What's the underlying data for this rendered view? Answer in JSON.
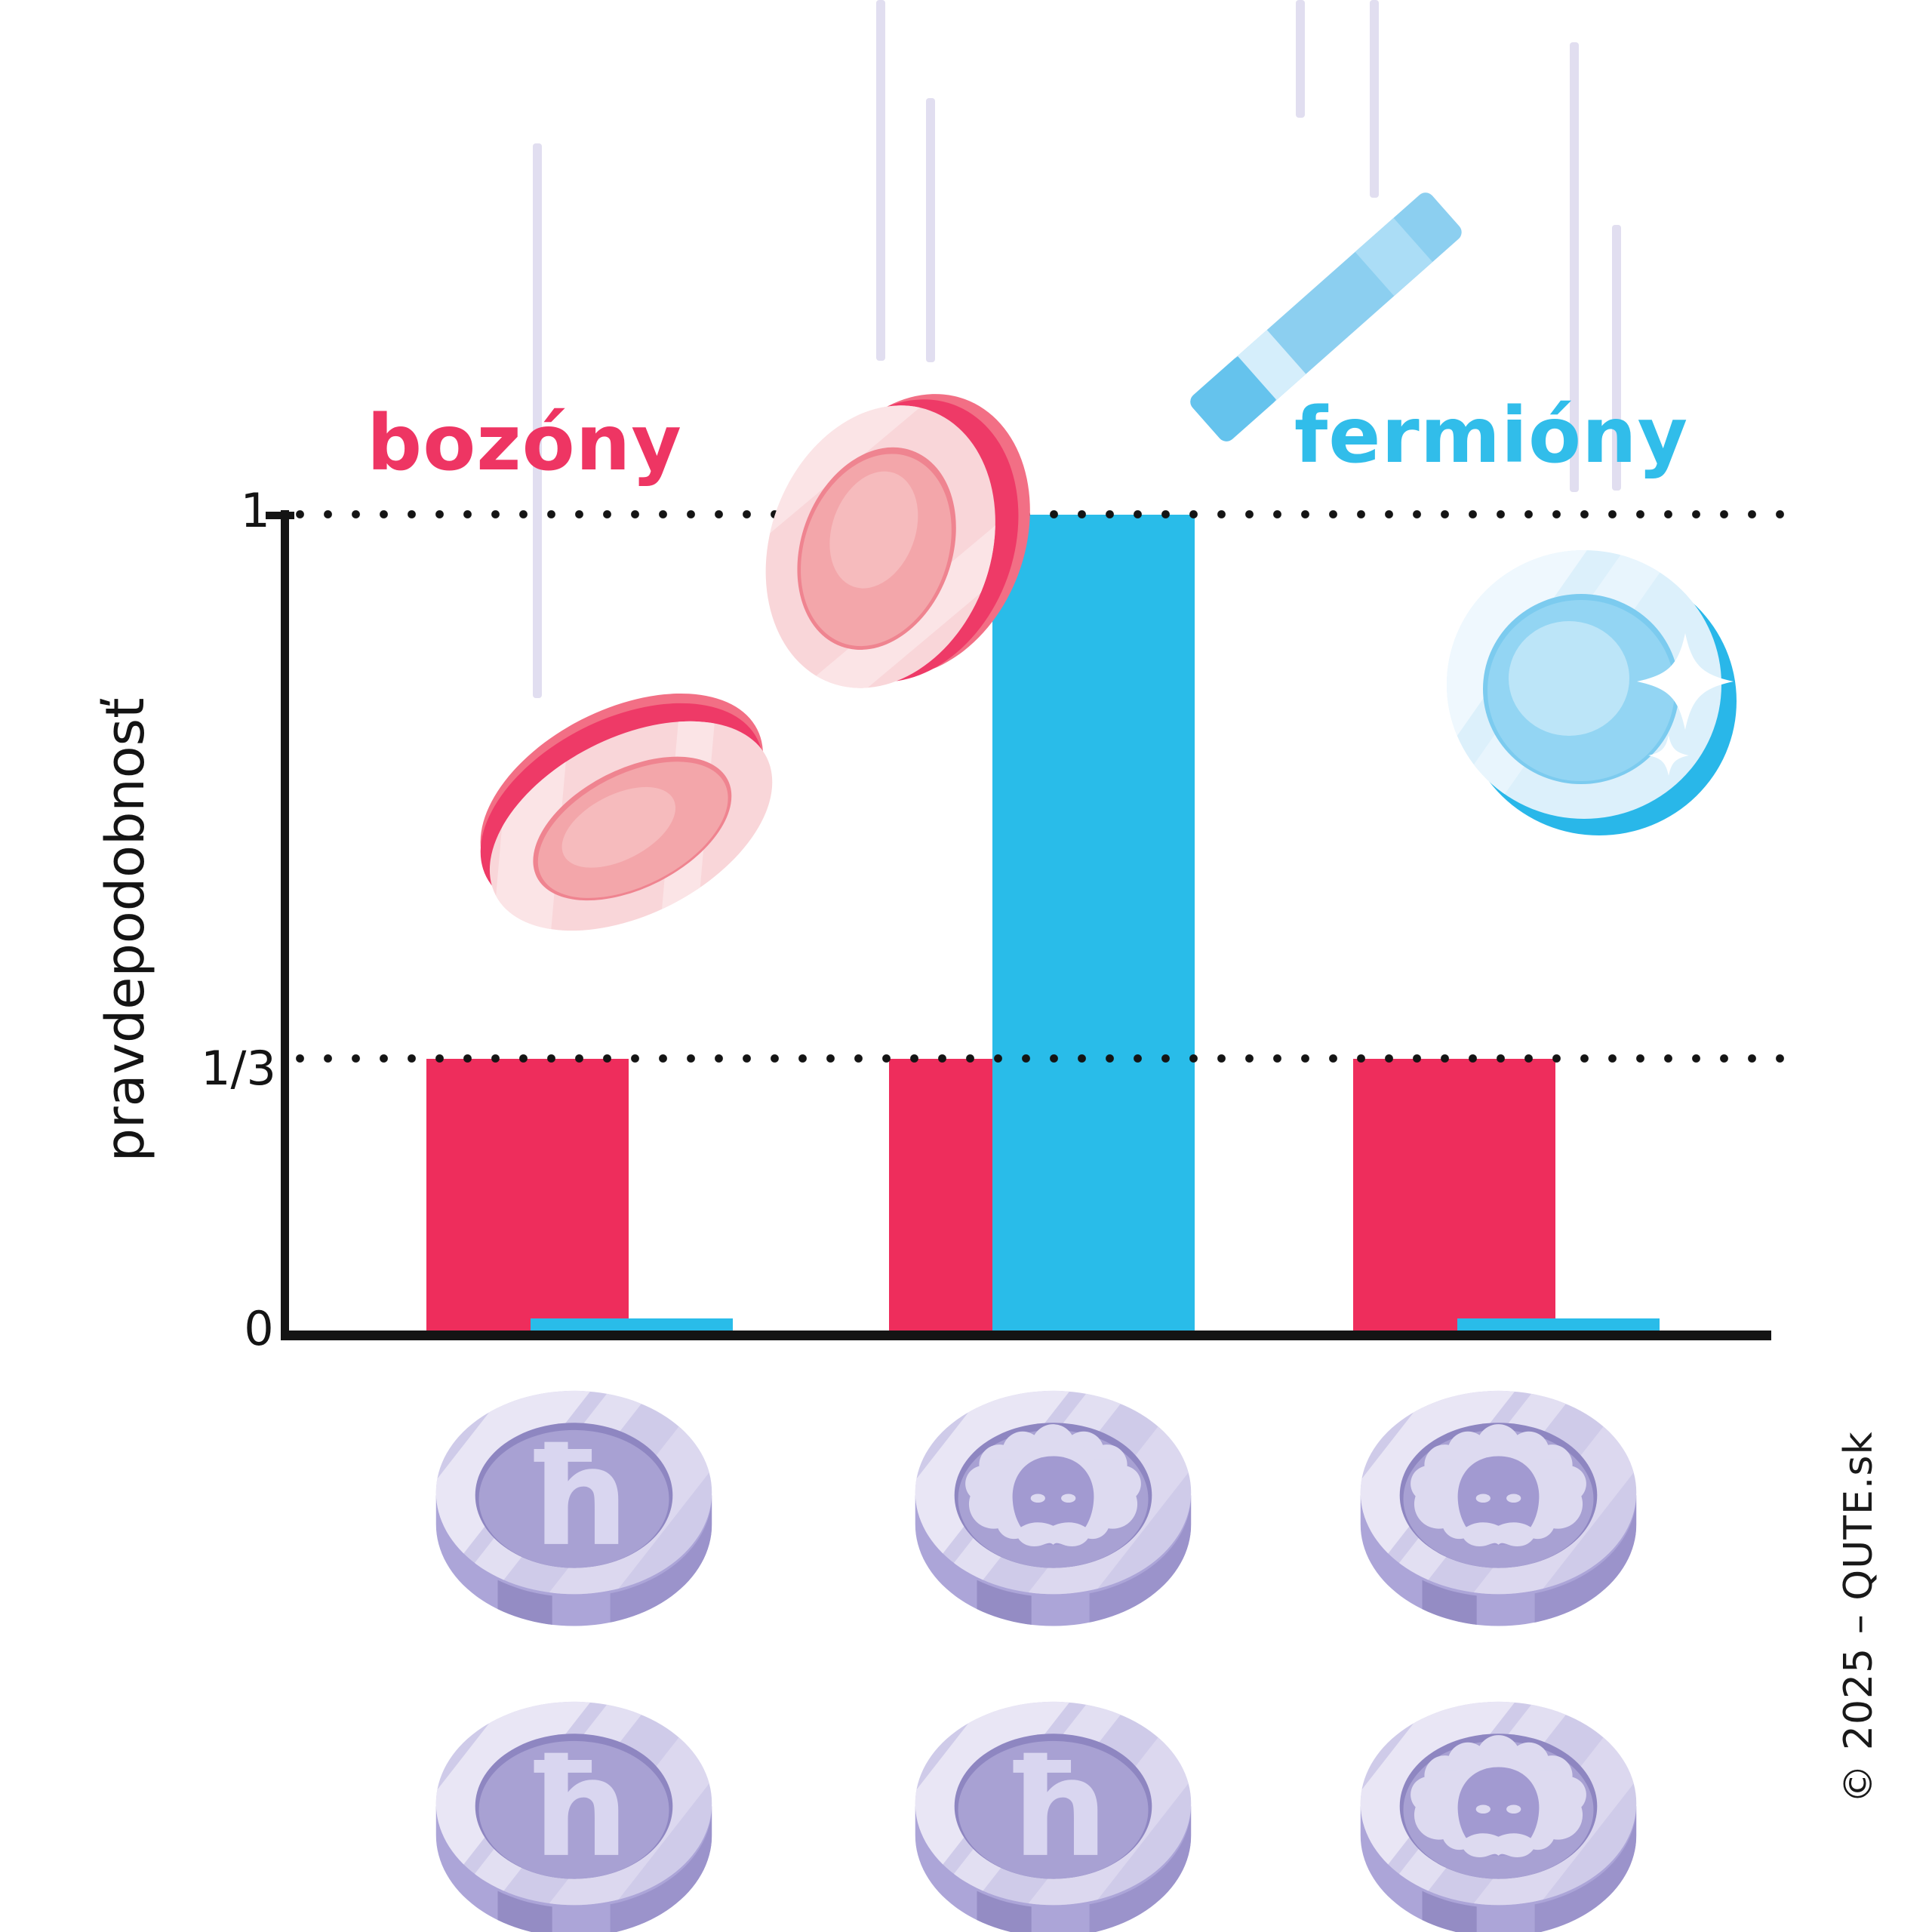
{
  "titles": {
    "left": {
      "label": "bozóny",
      "color": "#EE3563"
    },
    "right": {
      "label": "fermióny",
      "color": "#31BDEA"
    }
  },
  "axis": {
    "ylabel": "pravdepodobnosť",
    "tick_one": "1",
    "tick_third": "1/3",
    "tick_zero": "0"
  },
  "copyright": {
    "text": "© 2025 – QUTE.sk"
  },
  "colors": {
    "boson_pink": "#EE2D5C",
    "fermion_blue": "#29BCE9",
    "streak_lavender": "#E1DEF0",
    "coin_face_lavender": "#CFCBE9",
    "coin_inner_lavender": "#A8A1D3",
    "coin_symbol_light": "#DDDAF0",
    "axis_black": "#141414"
  },
  "chart_data": {
    "type": "bar",
    "title": "",
    "xlabel": "",
    "ylabel": "pravdepodobnosť",
    "ylim": [
      0,
      1
    ],
    "ytick_labels": [
      "0",
      "1/3",
      "1"
    ],
    "gridlines": {
      "style": "dotted",
      "values": [
        0.3333,
        1
      ]
    },
    "categories": [
      {
        "id": "both-hbar",
        "coins": [
          "hbar",
          "hbar"
        ],
        "description": "two ħ coins"
      },
      {
        "id": "mixed",
        "coins": [
          "face",
          "hbar"
        ],
        "description": "one face coin, one ħ coin"
      },
      {
        "id": "both-face",
        "coins": [
          "face",
          "face"
        ],
        "description": "two face coins"
      }
    ],
    "series": [
      {
        "name": "bozóny",
        "color": "#EE2D5C",
        "values": [
          0.3333,
          0.3333,
          0.3333
        ]
      },
      {
        "name": "fermióny",
        "color": "#29BCE9",
        "values": [
          0.015,
          1,
          0.015
        ]
      }
    ],
    "legend_position": "top",
    "coin_symbols": {
      "hbar": "ħ",
      "face": "einstein-face"
    }
  },
  "decorations": {
    "falling_coins": [
      "pink boson coin (tilted)",
      "pink boson coin (tilted)",
      "blue fermion coin (edge-on)",
      "blue fermion coin (face with sparkle)"
    ],
    "motion_streaks": 7
  }
}
